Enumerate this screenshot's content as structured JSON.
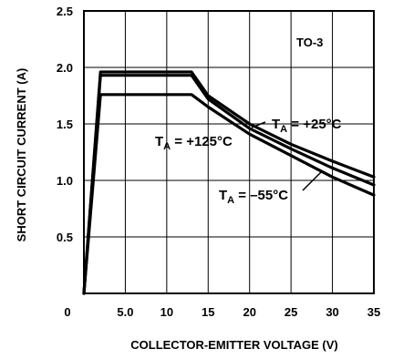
{
  "chart_data": {
    "type": "line",
    "title": "",
    "xlabel": "COLLECTOR-EMITTER VOLTAGE (V)",
    "ylabel": "SHORT CIRCUIT CURRENT (A)",
    "xlim": [
      0,
      35
    ],
    "ylim": [
      0,
      2.5
    ],
    "x_ticks": [
      5,
      10,
      15,
      20,
      25,
      30,
      35
    ],
    "x_tick_labels": [
      "5.0",
      "10",
      "15",
      "20",
      "25",
      "30",
      "35"
    ],
    "x_origin_label": "0",
    "y_ticks": [
      0.5,
      1.0,
      1.5,
      2.0,
      2.5
    ],
    "y_tick_labels": [
      "0.5",
      "1.0",
      "1.5",
      "2.0",
      "2.5"
    ],
    "grid": true,
    "annotations": {
      "package": "TO-3",
      "t25": {
        "main": "T",
        "sub": "A",
        "rest": " = +25°C"
      },
      "t125": {
        "main": "T",
        "sub": "A",
        "rest": " = +125°C"
      },
      "tm55": {
        "main": "T",
        "sub": "A",
        "rest": " = –55°C"
      }
    },
    "series": [
      {
        "name": "T_A = –55°C",
        "points": [
          [
            0,
            0
          ],
          [
            2,
            1.96
          ],
          [
            13,
            1.96
          ],
          [
            15,
            1.75
          ],
          [
            20,
            1.5
          ],
          [
            25,
            1.32
          ],
          [
            30,
            1.17
          ],
          [
            35,
            1.03
          ]
        ]
      },
      {
        "name": "T_A = +25°C",
        "points": [
          [
            0,
            0
          ],
          [
            2,
            1.93
          ],
          [
            13,
            1.93
          ],
          [
            15,
            1.72
          ],
          [
            20,
            1.46
          ],
          [
            25,
            1.28
          ],
          [
            30,
            1.11
          ],
          [
            35,
            0.96
          ]
        ]
      },
      {
        "name": "T_A = +125°C",
        "points": [
          [
            0,
            0
          ],
          [
            2,
            1.76
          ],
          [
            13,
            1.76
          ],
          [
            15,
            1.65
          ],
          [
            20,
            1.41
          ],
          [
            25,
            1.22
          ],
          [
            30,
            1.03
          ],
          [
            35,
            0.87
          ]
        ]
      }
    ]
  }
}
